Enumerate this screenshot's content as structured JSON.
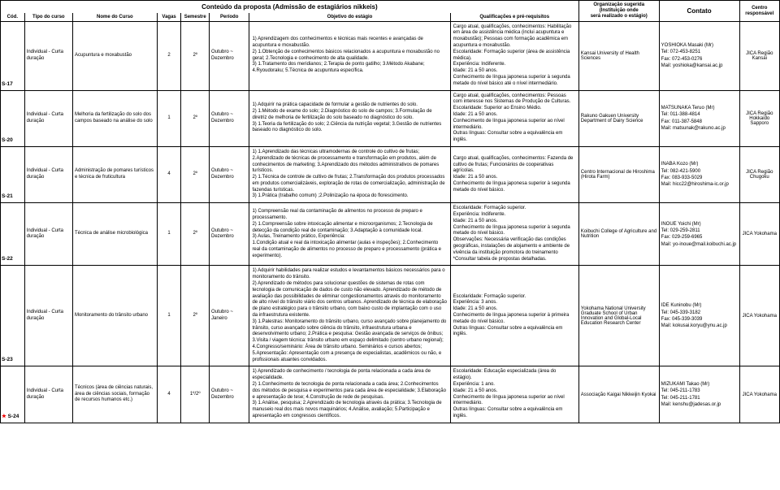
{
  "columnWidths": {
    "cod": "3%",
    "tipo": "6%",
    "nome": "10.5%",
    "vagas": "3%",
    "sem": "3.5%",
    "periodo": "5%",
    "objetivo": "25%",
    "qual": "16%",
    "org": "10%",
    "contato": "10%",
    "centro": "5%"
  },
  "headers": {
    "title": "Conteúdo da proposta (Admissão de estagiários nikkeis)",
    "org_line1": "Organização sugerida (Instituição onde",
    "org_line2": "será realizado o estágio)",
    "contato": "Contato",
    "centro_line1": "Centro",
    "centro_line2": "responsável",
    "cod": "Cód.",
    "tipo": "Tipo do curso",
    "nome": "Nome do Curso",
    "vagas": "Vagas",
    "sem": "Semestre",
    "periodo": "Período",
    "objetivo": "Objetivo do estágio",
    "qual": "Qualificações e pré-requisitos"
  },
  "rows": [
    {
      "cod": "S-17",
      "star": false,
      "tipo": "Individual - Curta duração",
      "nome": "Acupuntura e moxabustão",
      "vagas": "2",
      "sem": "2º",
      "periodo": "Outubro ~ Dezembro",
      "objetivo": "1) Aprendizagem dos conhecimentos e técnicas mais recentes e avançadas de acupuntura e moxabustão.\n2) 1.Obtenção de conhecimentos básicos relacionados a acupuntura e moxabustão no geral; 2.Tecnologia e conhecimento de alta qualidade.\n3) 1.Tratamento dos meridianos; 2.Terapia de ponto gatilho; 3.Método Akabane; 4.Ryoudoraku; 5.Técnica de acupuntura específica.",
      "qual": "Cargo atual, qualificações, conhecimentos: Habilitação em área de assistência médica (inclui acupuntura e moxabustão); Pessoas com formação acadêmica em acupuntura e moxabustão.\nEscolaridade: Formação superior (área de assistência médica).\nExperiência: Indiferente.\nIdade: 21 a 50 anos.\nConhecimento de língua japonesa superior à segunda metade do nível básico até o nível intermediário.",
      "org": "Kansai University of Health Sciences",
      "contato": "YOSHIOKA Masaki (Mr)\nTel: 072-453-8251\nFax: 072-453-0276\nMail: yoshioka@kansai.ac.jp",
      "centro": "JICA Região Kansai"
    },
    {
      "cod": "S-20",
      "star": false,
      "tipo": "Individual - Curta duração",
      "nome": "Melhoria da fertilização do solo dos campos baseado na análise do solo",
      "vagas": "1",
      "sem": "2º",
      "periodo": "Outubro ~ Dezembro",
      "objetivo": "1) Adquirir na prática capacidade de formular a gestão de nutrientes do solo.\n2) 1.Método de exame do solo; 2.Diagnóstico do solo de campos; 3.Formulação de diretriz de melhoria de fertilização do solo baseado no diagnóstico do solo.\n3) 1.Teoria da fertilização do solo; 2.Ciência da nutrição vegetal; 3.Gestão de nutrientes baseado no diagnóstico do solo.",
      "qual": "Cargo atual, qualificações, conhecimentos: Pessoas com interesse nos Sistemas de Produção de Culturas.\nEscolaridade: Superior ao Ensino Médio.\nIdade: 21 a 50 anos.\nConhecimento de língua japonesa superior ao nível intermediário.\nOutras línguas: Consultar sobre a equivalência em inglês.",
      "org": "Rakuno Gakuen University Department of Dairy Science",
      "contato": "MATSUNAKA Teruo (Mr)\nTel: 011-388-4814\nFax: 011-387-5848\nMail: matsunak@rakuno.ac.jp",
      "centro": "JICA Região Hokkaido Sapporo"
    },
    {
      "cod": "S-21",
      "star": false,
      "tipo": "Individual - Curta duração",
      "nome": "Administração de pomares turísticos e técnica de fruticultura",
      "vagas": "4",
      "sem": "2º",
      "periodo": "Outubro ~ Dezembro",
      "objetivo": "1) 1.Aprendizado das técnicas ultramodernas de controle do cultivo de frutas; 2.Aprendizado de técnicas de processamento e transformação em produtos, além de conhecimentos de marketing; 3.Aprendizado dos métodos administrativos de pomares turísticos.\n2) 1.Técnica de controle de cultivo de frutas; 2.Transformação dos produtos processados em produtos comercializáveis, exploração de rotas de comercialização, administração de fazendas turísticas.\n3) 1.Prática (trabalho comum) ;2.Polinização na época do florescimento.",
      "qual": "Cargo atual, qualificações, conhecimentos: Fazenda de cultivo de frutas; Funcionários de cooperativas agrícolas.\nIdade: 21 a 50 anos.\nConhecimento de língua japonesa superior à segunda metade do nível básico.",
      "org": "Centro Internacional de Hiroshima (Hirota Farm)",
      "contato": "INABA Kozo (Mr)\nTel: 082-421-5900\nFax: 083-933-5029\nMail: hicc22@hiroshima-ic.or.jp",
      "centro": "JICA Região Chugoku"
    },
    {
      "cod": "S-22",
      "star": false,
      "tipo": "Individual - Curta duração",
      "nome": "Técnica de análise microbiológica",
      "vagas": "1",
      "sem": "2º",
      "periodo": "Outubro ~ Dezembro",
      "objetivo": "1) Compreensão real da contaminação de alimentos no processo de preparo e processamento.\n2) 1.Compreensão sobre intoxicação alimentar e microorganismos; 2.Tecnologia de detecção da condição real de contaminação; 3.Adaptação à comunidade local.\n3) Aulas, Treinamento prático, Experiência:\n1.Condição atual e real da intoxicação alimentar (aulas e inspeções); 2.Conhecimento real da contaminação de alimentos no processo de preparo e processamento (prática e experimento).",
      "qual": "Escolaridade: Formação superior.\nExperiência: Indiferente.\nIdade: 21 a 50 anos.\nConhecimento de língua japonesa superior à segunda metade do nível básico.\nObservações: Necessária verificação das condições geográficas, instalações de alojamento e ambiente de vivência da instituição promotora do treinamento *Consultar tabela de propostas detalhadas.",
      "org": "Koibuchi College of Agriculture and Nutrition",
      "contato": "INOUE Yoichi (Mr)\nTel: 029-259-2811\nFax: 029-259-6965\nMail: yo-inoue@mail.koibuchi.ac.jp",
      "centro": "JICA Yokohama"
    },
    {
      "cod": "S-23",
      "star": false,
      "tipo": "Individual - Curta duração",
      "nome": "Monitoramento do trânsito urbano",
      "vagas": "1",
      "sem": "2º",
      "periodo": "Outubro ~ Janeiro",
      "objetivo": "1) Adquirir habilidades para realizar estudos e levantamentos básicos necessários para o monitoramento do trânsito.\n2) Aprendizado de métodos para solucionar questões de sistemas de rotas com tecnologia de comunicação de dados de custo não elevado. Aprendizado de método de avaliação das possibilidades de eliminar congestionamentos através do monitoramento de alto nível do trânsito viário dos centros urbanos. Aprendizado de técnica de elaboração de plano estratégico para o trânsito urbano, com baixo custo de implantação com o uso da infraestrutura existente.\n3) 1.Palestras: Monitoramento do trânsito urbano, curso avançado sobre planejamento do trânsito, curso avançado sobre ciência do trânsito, infraestrutura urbana e desenvolvimento urbano; 2.Prática e pesquisa: Gestão avançada de serviços de ônibus; 3.Visita / viagem técnica: trânsito urbano em espaço delimitado (centro urbano regional); 4.Congresso/seminário: Área de trânsito urbano. Seminários e cursos abertos; 5.Apresentação: Apresentação com a presença de especialistas, acadêmicos ou não, e profissionais atuantes convidados.",
      "qual": "Escolaridade: Formação superior.\nExperiência: 3 anos.\nIdade: 21 a 50 anos.\nConhecimento de língua japonesa superior à primeira metade do nível básico.\nOutras línguas: Consultar sobre a equivalência em inglês.",
      "org": "Yokohama National University Graduate School of Urban Innovation and Global-Local Education Research Center",
      "contato": "IDE Kuninobu (Mr)\nTel: 045-339-3182\nFax: 045-339-3039\nMail: kokusai.koryu@ynu.ac.jp",
      "centro": "JICA Yokohama"
    },
    {
      "cod": "S-24",
      "star": true,
      "tipo": "Individual - Curta duração",
      "nome": "Técnicos (área de ciências naturais, área de ciências sociais, formação de recursos humanos etc.)",
      "vagas": "4",
      "sem": "1º/2º",
      "periodo": "Outubro ~ Dezembro",
      "objetivo": "1) Aprendizado de conhecimento / tecnologia de ponta relacionada a cada área de especialidade.\n2) 1.Conhecimento de tecnologia de ponta relacionada a cada área; 2.Conhecimentos dos métodos de pesquisa e experimentos para cada área de especialidade; 3.Elaboração e apresentação de tese; 4.Construção de rede de pesquisas.\n3) 1.Análise, pesquisa; 2.Aprendizado de tecnologia através da prática; 3.Tecnologia de manuseio real dos mais novos maquinários; 4.Análise, avaliação; 5.Participação e apresentação em congressos científicos.",
      "qual": "Escolaridade: Educação especializada (área do estágio).\nExperiência: 1 ano.\nIdade: 21 a 50 anos.\nConhecimento de língua japonesa superior ao nível intermediário.\nOutras línguas: Consultar sobre a equivalência em inglês.",
      "org": "Associação Kaigai Nikkeijin Kyokai",
      "contato": "MIZUKAMI Takao (Mr)\nTel: 045-211-1783\nTel: 045-211-1781\nMail: kenshu@jadesas.or.jp",
      "centro": "JICA Yokohama"
    }
  ]
}
